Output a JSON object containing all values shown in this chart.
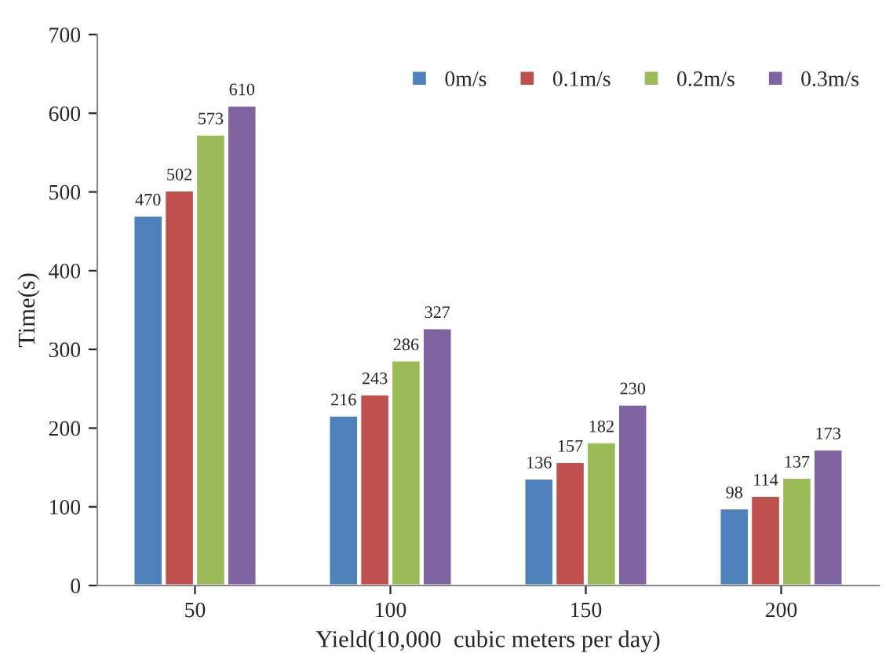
{
  "chart_data": {
    "type": "bar",
    "xlabel": "Yield(10,000  cubic meters per day)",
    "ylabel": "Time(s)",
    "categories": [
      "50",
      "100",
      "150",
      "200"
    ],
    "series": [
      {
        "name": "0m/s",
        "color": "#4f81bd",
        "values": [
          470,
          216,
          136,
          98
        ]
      },
      {
        "name": "0.1m/s",
        "color": "#c0504d",
        "values": [
          502,
          243,
          157,
          114
        ]
      },
      {
        "name": "0.2m/s",
        "color": "#9bbb59",
        "values": [
          573,
          286,
          182,
          137
        ]
      },
      {
        "name": "0.3m/s",
        "color": "#8064a2",
        "values": [
          610,
          327,
          230,
          173
        ]
      }
    ],
    "ylim": [
      0,
      700
    ],
    "yticks": [
      0,
      100,
      200,
      300,
      400,
      500,
      600,
      700
    ],
    "data_labels": true,
    "grid": false,
    "legend": "top right"
  }
}
